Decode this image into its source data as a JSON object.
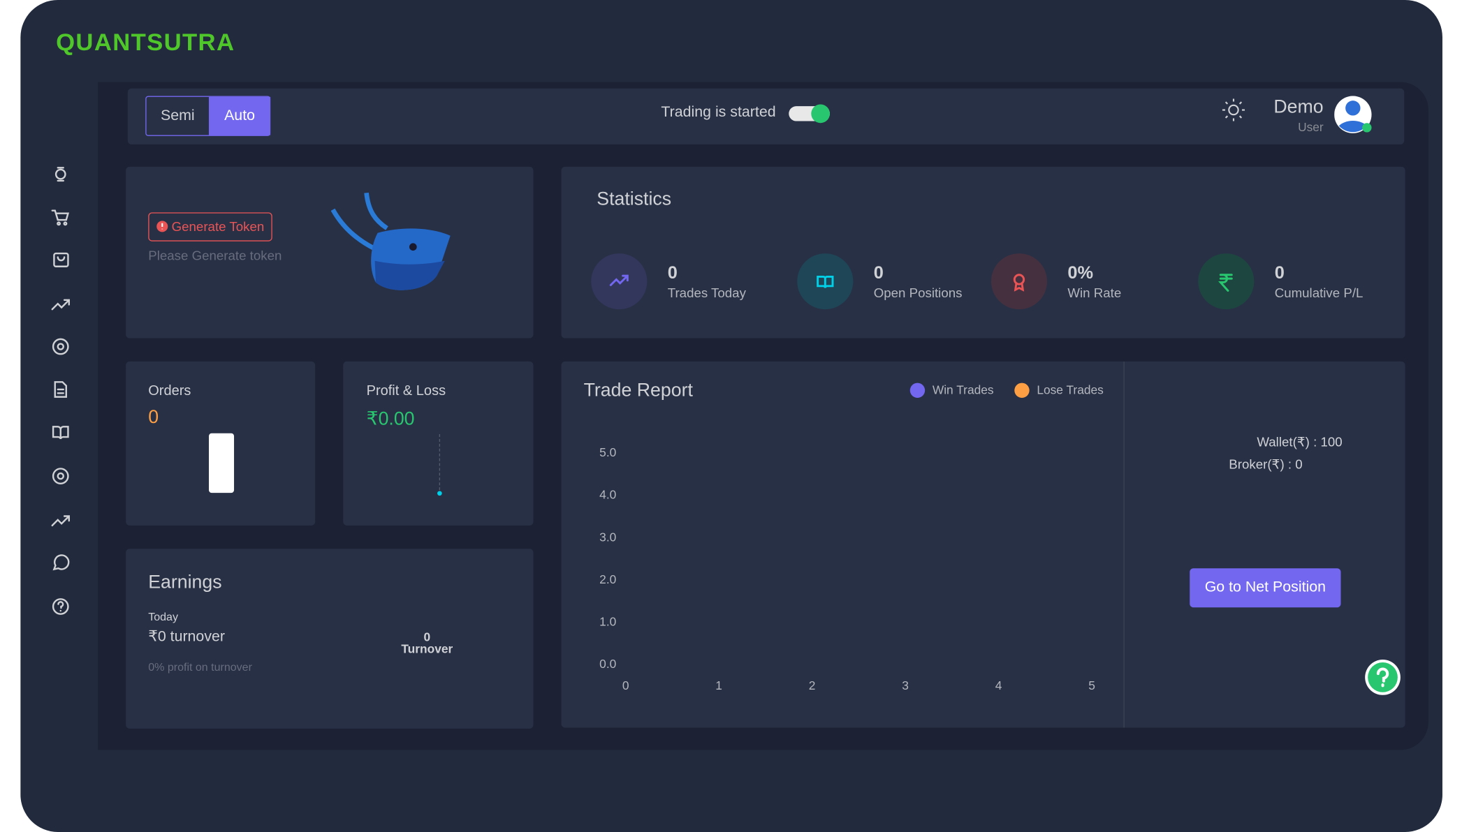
{
  "logo": "QUANTSUTRA",
  "topbar": {
    "modes": [
      "Semi",
      "Auto"
    ],
    "status": "Trading is started",
    "user": {
      "name": "Demo",
      "role": "User"
    }
  },
  "token": {
    "button": "Generate Token",
    "hint": "Please Generate token"
  },
  "statistics": {
    "title": "Statistics",
    "items": [
      {
        "value": "0",
        "label": "Trades Today"
      },
      {
        "value": "0",
        "label": "Open Positions"
      },
      {
        "value": "0%",
        "label": "Win Rate"
      },
      {
        "value": "0",
        "label": "Cumulative P/L"
      }
    ]
  },
  "orders": {
    "title": "Orders",
    "value": "0"
  },
  "pnl": {
    "title": "Profit & Loss",
    "value": "₹0.00"
  },
  "earnings": {
    "title": "Earnings",
    "period": "Today",
    "turnover": "₹0 turnover",
    "profit": "0% profit on turnover",
    "total": "0",
    "total_label": "Turnover"
  },
  "trade_report": {
    "title": "Trade Report",
    "legend": [
      {
        "name": "Win Trades",
        "color": "#7367f0"
      },
      {
        "name": "Lose Trades",
        "color": "#ff9f43"
      }
    ],
    "xlim": [
      0,
      5
    ],
    "xticks": [
      0,
      1,
      2,
      3,
      4,
      5
    ],
    "ylim": [
      0,
      5
    ],
    "yticks": [
      {
        "value": 0,
        "label": "0.0"
      },
      {
        "value": 1,
        "label": "1.0"
      },
      {
        "value": 2,
        "label": "2.0"
      },
      {
        "value": 3,
        "label": "3.0"
      },
      {
        "value": 4,
        "label": "4.0"
      },
      {
        "value": 5,
        "label": "5.0"
      }
    ]
  },
  "wallet": {
    "wallet": "Wallet(₹) : 100",
    "broker": "Broker(₹) : 0",
    "button": "Go to Net Position"
  }
}
